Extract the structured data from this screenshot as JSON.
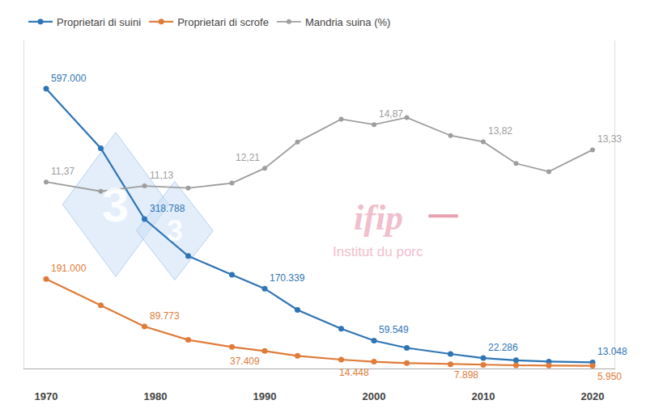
{
  "chart_data": {
    "type": "line",
    "x": [
      1970,
      1975,
      1979,
      1983,
      1987,
      1990,
      1993,
      1997,
      2000,
      2003,
      2007,
      2010,
      2013,
      2016,
      2020
    ],
    "series": [
      {
        "name": "Proprietari di suini",
        "color": "#2e75b6",
        "values": [
          597000,
          470000,
          318788,
          240000,
          200000,
          170339,
          125000,
          85000,
          59549,
          44000,
          31000,
          22286,
          17500,
          14800,
          13048
        ],
        "value_labels": [
          "597.000",
          null,
          "318.788",
          null,
          null,
          "170.339",
          null,
          null,
          "59.549",
          null,
          null,
          "22.286",
          null,
          null,
          "13.048"
        ]
      },
      {
        "name": "Proprietari di scrofe",
        "color": "#e07b39",
        "values": [
          191000,
          135000,
          89773,
          61000,
          46000,
          37409,
          27000,
          19000,
          14448,
          11500,
          9200,
          7898,
          6900,
          6400,
          5950
        ],
        "value_labels": [
          "191.000",
          null,
          "89.773",
          null,
          null,
          "37.409",
          null,
          null,
          "14.448",
          null,
          null,
          "7.898",
          null,
          null,
          "5.950"
        ]
      },
      {
        "name": "Mandria suina (%)",
        "color": "#9e9e9e",
        "axis": "y2",
        "values": [
          11.37,
          10.8,
          11.13,
          11.0,
          11.3,
          12.21,
          13.8,
          15.2,
          14.87,
          15.3,
          14.2,
          13.82,
          12.5,
          12.0,
          13.33
        ],
        "value_labels": [
          "11,37",
          null,
          "11,13",
          null,
          null,
          "12,21",
          null,
          null,
          "14,87",
          null,
          null,
          "13,82",
          null,
          null,
          "13,33"
        ]
      }
    ],
    "xlim": [
      1968,
      2022
    ],
    "xticks": [
      1970,
      1980,
      1990,
      2000,
      2010,
      2020
    ],
    "ylim": [
      0,
      700000
    ],
    "y2lim": [
      0,
      20
    ],
    "tick_labels": "x",
    "grid": false,
    "legend": "upper left",
    "marker": "circle",
    "data_labels": true,
    "annotations": [
      "3",
      "3",
      "ifip",
      "Institut du porc"
    ]
  }
}
